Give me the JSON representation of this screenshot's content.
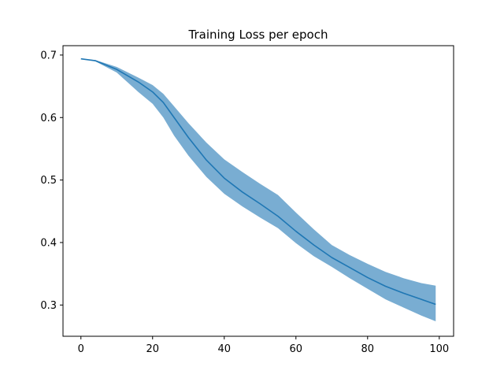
{
  "chart_data": {
    "type": "line",
    "title": "Training Loss per epoch",
    "xlabel": "",
    "ylabel": "",
    "xlim": [
      -5,
      104
    ],
    "ylim": [
      0.25,
      0.715
    ],
    "x_ticks": [
      0,
      20,
      40,
      60,
      80,
      100
    ],
    "y_ticks": [
      0.3,
      0.4,
      0.5,
      0.6,
      0.7
    ],
    "x_tick_labels": [
      "0",
      "20",
      "40",
      "60",
      "80",
      "100"
    ],
    "y_tick_labels": [
      "0.3",
      "0.4",
      "0.5",
      "0.6",
      "0.7"
    ],
    "grid": false,
    "legend": "none",
    "series": [
      {
        "x": [
          0,
          4,
          10,
          16,
          20,
          23,
          26,
          30,
          35,
          40,
          45,
          50,
          55,
          60,
          65,
          70,
          75,
          80,
          85,
          90,
          95,
          99
        ],
        "mean": [
          0.694,
          0.691,
          0.677,
          0.657,
          0.641,
          0.624,
          0.6,
          0.568,
          0.532,
          0.503,
          0.481,
          0.462,
          0.442,
          0.418,
          0.396,
          0.376,
          0.36,
          0.344,
          0.33,
          0.319,
          0.309,
          0.301
        ],
        "upper": [
          0.694,
          0.692,
          0.681,
          0.664,
          0.652,
          0.638,
          0.618,
          0.591,
          0.56,
          0.533,
          0.513,
          0.494,
          0.476,
          0.448,
          0.421,
          0.396,
          0.38,
          0.366,
          0.353,
          0.343,
          0.335,
          0.331
        ],
        "lower": [
          0.694,
          0.69,
          0.672,
          0.641,
          0.622,
          0.6,
          0.571,
          0.539,
          0.505,
          0.478,
          0.458,
          0.44,
          0.423,
          0.399,
          0.378,
          0.361,
          0.343,
          0.326,
          0.309,
          0.296,
          0.283,
          0.274
        ]
      }
    ],
    "colors": {
      "line": "#1f77b4",
      "band": "#1f77b4",
      "band_opacity": 0.6
    }
  }
}
